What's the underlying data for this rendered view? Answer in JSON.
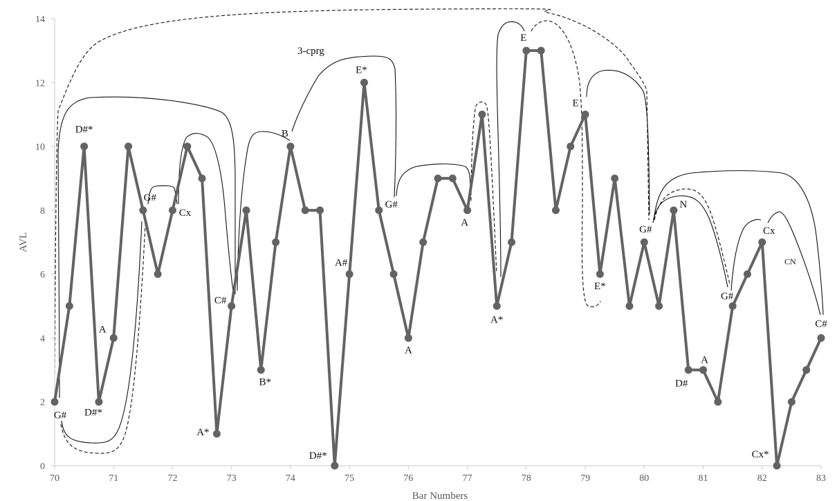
{
  "chart_data": {
    "type": "line",
    "xlabel": "Bar Numbers",
    "ylabel": "AVL",
    "xlim": [
      70,
      83
    ],
    "ylim": [
      0,
      14
    ],
    "xticks": [
      70,
      71,
      72,
      73,
      74,
      75,
      76,
      77,
      78,
      79,
      80,
      81,
      82,
      83
    ],
    "yticks": [
      0,
      2,
      4,
      6,
      8,
      10,
      12,
      14
    ],
    "grid": false,
    "colors": {
      "line": "#636363",
      "marker": "#636363",
      "axis": "#c8c8c8",
      "annotation": "#111111"
    },
    "points": [
      {
        "x": 70.0,
        "y": 2,
        "label": "G#"
      },
      {
        "x": 70.25,
        "y": 5,
        "label": ""
      },
      {
        "x": 70.5,
        "y": 10,
        "label": "D#*"
      },
      {
        "x": 70.75,
        "y": 2,
        "label": "D#*"
      },
      {
        "x": 71.0,
        "y": 4,
        "label": "A"
      },
      {
        "x": 71.25,
        "y": 10,
        "label": ""
      },
      {
        "x": 71.5,
        "y": 8,
        "label": "G#"
      },
      {
        "x": 71.75,
        "y": 6,
        "label": ""
      },
      {
        "x": 72.0,
        "y": 8,
        "label": "Cx"
      },
      {
        "x": 72.25,
        "y": 10,
        "label": ""
      },
      {
        "x": 72.5,
        "y": 9,
        "label": ""
      },
      {
        "x": 72.75,
        "y": 1,
        "label": "A*"
      },
      {
        "x": 73.0,
        "y": 5,
        "label": "C#"
      },
      {
        "x": 73.25,
        "y": 8,
        "label": ""
      },
      {
        "x": 73.5,
        "y": 3,
        "label": "B*"
      },
      {
        "x": 73.75,
        "y": 7,
        "label": ""
      },
      {
        "x": 74.0,
        "y": 10,
        "label": "B"
      },
      {
        "x": 74.25,
        "y": 8,
        "label": ""
      },
      {
        "x": 74.5,
        "y": 8,
        "label": ""
      },
      {
        "x": 74.75,
        "y": 0,
        "label": "D#*"
      },
      {
        "x": 75.0,
        "y": 6,
        "label": "A#"
      },
      {
        "x": 75.25,
        "y": 12,
        "label": "E*"
      },
      {
        "x": 75.5,
        "y": 8,
        "label": "G#"
      },
      {
        "x": 75.75,
        "y": 6,
        "label": ""
      },
      {
        "x": 76.0,
        "y": 4,
        "label": "A"
      },
      {
        "x": 76.25,
        "y": 7,
        "label": ""
      },
      {
        "x": 76.5,
        "y": 9,
        "label": ""
      },
      {
        "x": 76.75,
        "y": 9,
        "label": ""
      },
      {
        "x": 77.0,
        "y": 8,
        "label": "A"
      },
      {
        "x": 77.25,
        "y": 11,
        "label": ""
      },
      {
        "x": 77.5,
        "y": 5,
        "label": "A*"
      },
      {
        "x": 77.75,
        "y": 7,
        "label": ""
      },
      {
        "x": 78.0,
        "y": 13,
        "label": "E"
      },
      {
        "x": 78.25,
        "y": 13,
        "label": ""
      },
      {
        "x": 78.5,
        "y": 8,
        "label": ""
      },
      {
        "x": 78.75,
        "y": 10,
        "label": ""
      },
      {
        "x": 79.0,
        "y": 11,
        "label": "E"
      },
      {
        "x": 79.25,
        "y": 6,
        "label": "E*"
      },
      {
        "x": 79.5,
        "y": 9,
        "label": ""
      },
      {
        "x": 79.75,
        "y": 5,
        "label": ""
      },
      {
        "x": 80.0,
        "y": 7,
        "label": "G#"
      },
      {
        "x": 80.25,
        "y": 5,
        "label": ""
      },
      {
        "x": 80.5,
        "y": 8,
        "label": "N"
      },
      {
        "x": 80.75,
        "y": 3,
        "label": "D#"
      },
      {
        "x": 81.0,
        "y": 3,
        "label": "A"
      },
      {
        "x": 81.25,
        "y": 2,
        "label": ""
      },
      {
        "x": 81.5,
        "y": 5,
        "label": "G#"
      },
      {
        "x": 81.75,
        "y": 6,
        "label": ""
      },
      {
        "x": 82.0,
        "y": 7,
        "label": "Cx"
      },
      {
        "x": 82.25,
        "y": 0,
        "label": "Cx*"
      },
      {
        "x": 82.5,
        "y": 2,
        "label": ""
      },
      {
        "x": 82.75,
        "y": 3,
        "label": ""
      },
      {
        "x": 83.0,
        "y": 4,
        "label": "C#"
      }
    ],
    "annotations": [
      {
        "text": "3-cprg",
        "size": "normal"
      },
      {
        "text": "CN",
        "size": "small"
      }
    ]
  }
}
